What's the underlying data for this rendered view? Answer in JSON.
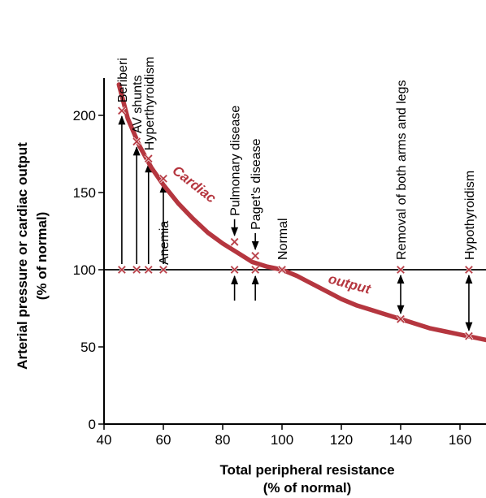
{
  "chart_data": {
    "type": "line",
    "title": "",
    "xlabel_lines": [
      "Total peripheral resistance",
      "(% of normal)"
    ],
    "ylabel_lines": [
      "Arterial pressure or cardiac output",
      "(% of normal)"
    ],
    "xlim": [
      40,
      170
    ],
    "ylim": [
      0,
      220
    ],
    "x_ticks": [
      40,
      60,
      80,
      100,
      120,
      140,
      160
    ],
    "y_ticks": [
      0,
      50,
      100,
      150,
      200
    ],
    "grid": false,
    "reference_line": {
      "y": 100,
      "label": "Arterial pressure"
    },
    "series": [
      {
        "name": "Cardiac output",
        "curve_labels": [
          "Cardiac",
          "output"
        ],
        "color": "#b5363f",
        "x": [
          45,
          48,
          52,
          56,
          60,
          65,
          70,
          75,
          80,
          85,
          90,
          95,
          100,
          105,
          110,
          115,
          120,
          125,
          130,
          135,
          140,
          145,
          150,
          155,
          160,
          165,
          170
        ],
        "y": [
          220,
          198,
          180,
          166,
          155,
          143,
          133,
          124,
          117,
          111,
          105,
          102,
          100,
          96,
          91,
          86,
          81,
          77,
          74,
          71,
          68,
          65,
          62,
          60,
          58,
          56,
          54
        ]
      }
    ],
    "conditions": [
      {
        "label": "Beriberi",
        "x": 46,
        "cardiac_output": 203,
        "arrow": "up"
      },
      {
        "label": "AV shunts",
        "x": 51,
        "cardiac_output": 183,
        "arrow": "up"
      },
      {
        "label": "Hyperthyroidism",
        "x": 55,
        "cardiac_output": 172,
        "arrow": "up"
      },
      {
        "label": "Anemia",
        "x": 60,
        "cardiac_output": 159,
        "arrow": "up"
      },
      {
        "label": "Pulmonary disease",
        "x": 84,
        "cardiac_output": 118,
        "arrow": "down"
      },
      {
        "label": "Paget's disease",
        "x": 91,
        "cardiac_output": 109,
        "arrow": "down"
      },
      {
        "label": "Normal",
        "x": 100,
        "cardiac_output": 100,
        "arrow": "none"
      },
      {
        "label": "Removal of both arms and legs",
        "x": 140,
        "cardiac_output": 68,
        "arrow": "both"
      },
      {
        "label": "Hypothyroidism",
        "x": 163,
        "cardiac_output": 57,
        "arrow": "both"
      }
    ]
  }
}
